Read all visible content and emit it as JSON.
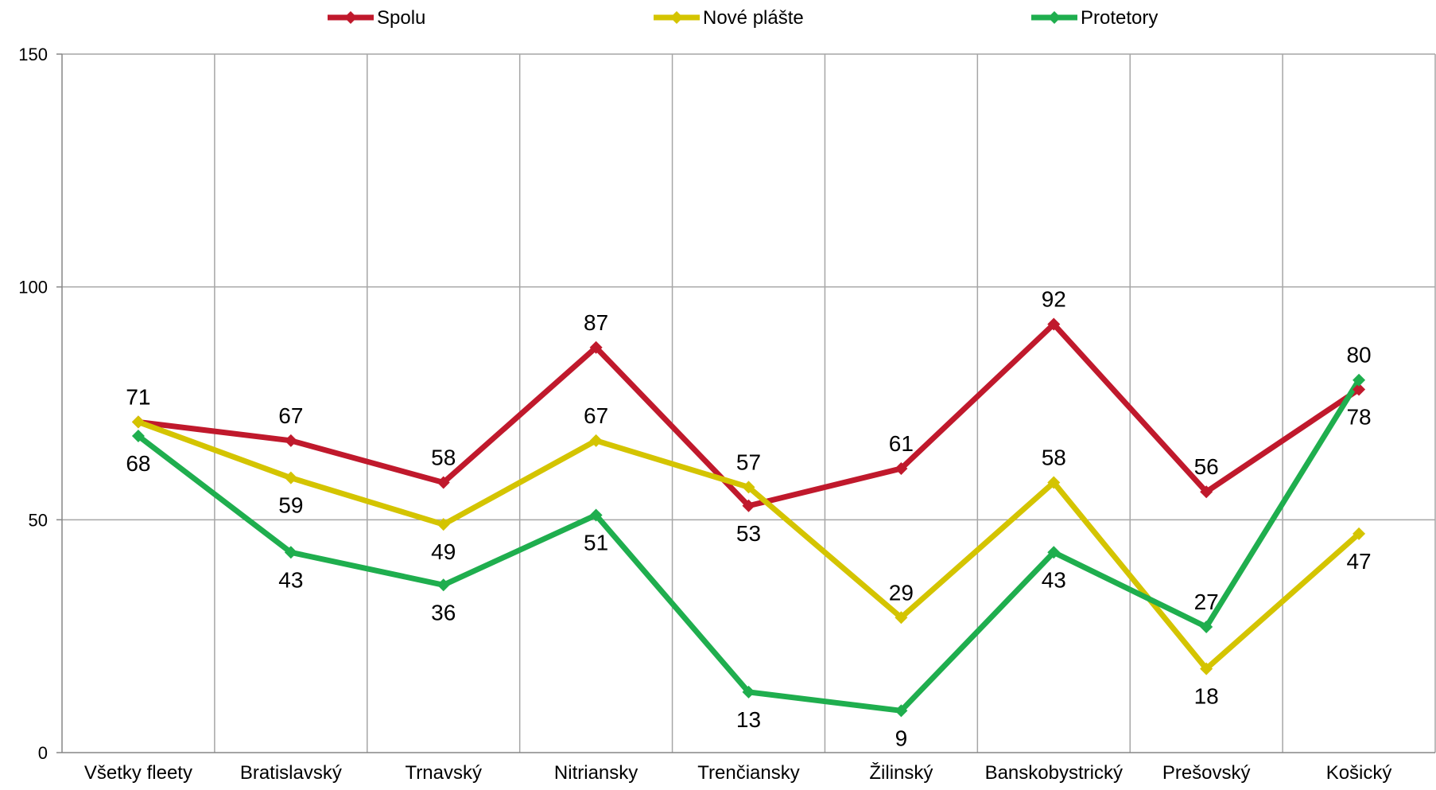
{
  "chart_data": {
    "type": "line",
    "title": "",
    "xlabel": "",
    "ylabel": "",
    "ylim": [
      0,
      150
    ],
    "yticks": [
      0,
      50,
      100,
      150
    ],
    "grid": "vertical and horizontal",
    "legend_position": "top",
    "categories": [
      "Všetky fleety",
      "Bratislavský",
      "Trnavský",
      "Nitriansky",
      "Trenčiansky",
      "Žilinský",
      "Banskobystrický",
      "Prešovský",
      "Košický"
    ],
    "series": [
      {
        "name": "Spolu",
        "color": "#c0192c",
        "values": [
          71,
          67,
          58,
          87,
          53,
          61,
          92,
          56,
          78
        ]
      },
      {
        "name": "Nové plášte",
        "color": "#d4c400",
        "values": [
          71,
          59,
          49,
          67,
          57,
          29,
          58,
          18,
          47
        ]
      },
      {
        "name": "Protetory",
        "color": "#1fae4e",
        "values": [
          68,
          43,
          36,
          51,
          13,
          9,
          43,
          27,
          80
        ]
      }
    ]
  }
}
